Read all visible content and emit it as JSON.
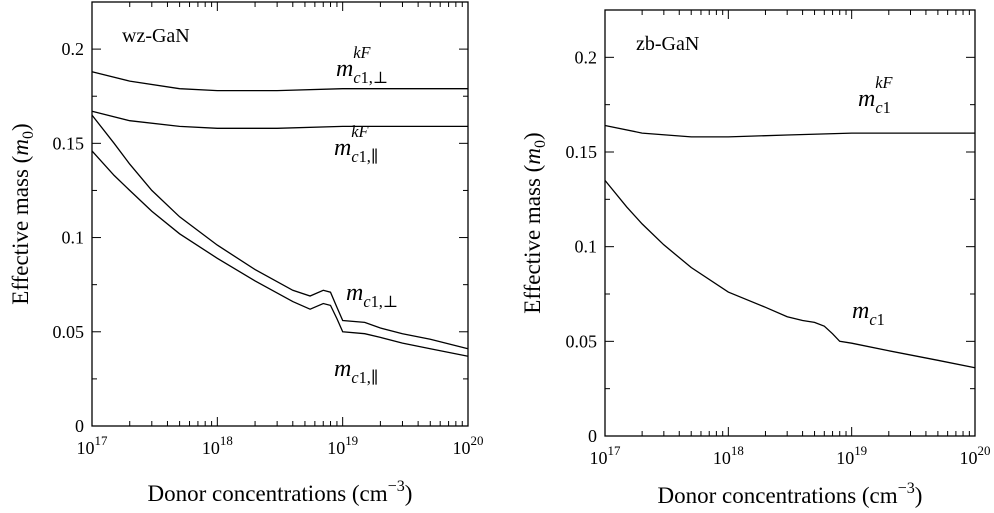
{
  "chart_data": [
    {
      "type": "line",
      "panel_label": "wz-GaN",
      "ylabel_main": "Effective mass (",
      "ylabel_unit": "m",
      "ylabel_unit_sub": "0",
      "ylabel_close": ")",
      "xlabel_main": "Donor concentrations (cm",
      "xlabel_exp": "−3",
      "xlabel_close": ")",
      "x_scale": "log",
      "xlim": [
        1e+17,
        1e+20
      ],
      "ylim": [
        0,
        0.225
      ],
      "y_ticks": [
        "0",
        "0.05",
        "0.1",
        "0.15",
        "0.2"
      ],
      "x_ticks": [
        {
          "base": "10",
          "exp": "17"
        },
        {
          "base": "10",
          "exp": "18"
        },
        {
          "base": "10",
          "exp": "19"
        },
        {
          "base": "10",
          "exp": "20"
        }
      ],
      "series": [
        {
          "label": {
            "base": "m",
            "sub": "c1,⊥",
            "sup": "kF"
          },
          "x": [
            1e+17,
            2e+17,
            5e+17,
            1e+18,
            3e+18,
            1e+19,
            3e+19,
            1e+20
          ],
          "y": [
            0.188,
            0.183,
            0.179,
            0.178,
            0.178,
            0.179,
            0.179,
            0.179
          ]
        },
        {
          "label": {
            "base": "m",
            "sub": "c1,∥",
            "sup": "kF"
          },
          "x": [
            1e+17,
            2e+17,
            5e+17,
            1e+18,
            3e+18,
            1e+19,
            3e+19,
            1e+20
          ],
          "y": [
            0.167,
            0.162,
            0.159,
            0.158,
            0.158,
            0.159,
            0.159,
            0.159
          ]
        },
        {
          "label": {
            "base": "m",
            "sub": "c1,⊥",
            "sup": ""
          },
          "x": [
            1e+17,
            1.5e+17,
            2e+17,
            3e+17,
            5e+17,
            1e+18,
            2e+18,
            4e+18,
            5.5e+18,
            7e+18,
            8e+18,
            9e+18,
            1e+19,
            1.5e+19,
            2e+19,
            3e+19,
            5e+19,
            1e+20
          ],
          "y": [
            0.165,
            0.15,
            0.139,
            0.125,
            0.111,
            0.096,
            0.083,
            0.072,
            0.069,
            0.072,
            0.071,
            0.063,
            0.056,
            0.055,
            0.052,
            0.049,
            0.046,
            0.041
          ]
        },
        {
          "label": {
            "base": "m",
            "sub": "c1,∥",
            "sup": ""
          },
          "x": [
            1e+17,
            1.5e+17,
            2e+17,
            3e+17,
            5e+17,
            1e+18,
            2e+18,
            4e+18,
            5.5e+18,
            7e+18,
            8e+18,
            9e+18,
            1e+19,
            1.5e+19,
            2e+19,
            3e+19,
            5e+19,
            1e+20
          ],
          "y": [
            0.146,
            0.133,
            0.125,
            0.114,
            0.102,
            0.089,
            0.077,
            0.066,
            0.062,
            0.065,
            0.064,
            0.057,
            0.05,
            0.049,
            0.047,
            0.044,
            0.041,
            0.037
          ]
        }
      ]
    },
    {
      "type": "line",
      "panel_label": "zb-GaN",
      "ylabel_main": "Effective mass (",
      "ylabel_unit": "m",
      "ylabel_unit_sub": "0",
      "ylabel_close": ")",
      "xlabel_main": "Donor concentrations (cm",
      "xlabel_exp": "−3",
      "xlabel_close": ")",
      "x_scale": "log",
      "xlim": [
        1e+17,
        1e+20
      ],
      "ylim": [
        0,
        0.225
      ],
      "y_ticks": [
        "0",
        "0.05",
        "0.1",
        "0.15",
        "0.2"
      ],
      "x_ticks": [
        {
          "base": "10",
          "exp": "17"
        },
        {
          "base": "10",
          "exp": "18"
        },
        {
          "base": "10",
          "exp": "19"
        },
        {
          "base": "10",
          "exp": "20"
        }
      ],
      "series": [
        {
          "label": {
            "base": "m",
            "sub": "c1",
            "sup": "kF"
          },
          "x": [
            1e+17,
            2e+17,
            5e+17,
            1e+18,
            3e+18,
            1e+19,
            3e+19,
            1e+20
          ],
          "y": [
            0.164,
            0.16,
            0.158,
            0.158,
            0.159,
            0.16,
            0.16,
            0.16
          ]
        },
        {
          "label": {
            "base": "m",
            "sub": "c1",
            "sup": ""
          },
          "x": [
            1e+17,
            1.5e+17,
            2e+17,
            3e+17,
            5e+17,
            1e+18,
            2e+18,
            3e+18,
            4e+18,
            5e+18,
            6e+18,
            7e+18,
            8e+18,
            1e+19,
            2e+19,
            5e+19,
            1e+20
          ],
          "y": [
            0.135,
            0.121,
            0.112,
            0.101,
            0.089,
            0.076,
            0.068,
            0.063,
            0.061,
            0.06,
            0.058,
            0.054,
            0.05,
            0.049,
            0.045,
            0.04,
            0.036
          ]
        }
      ]
    }
  ]
}
